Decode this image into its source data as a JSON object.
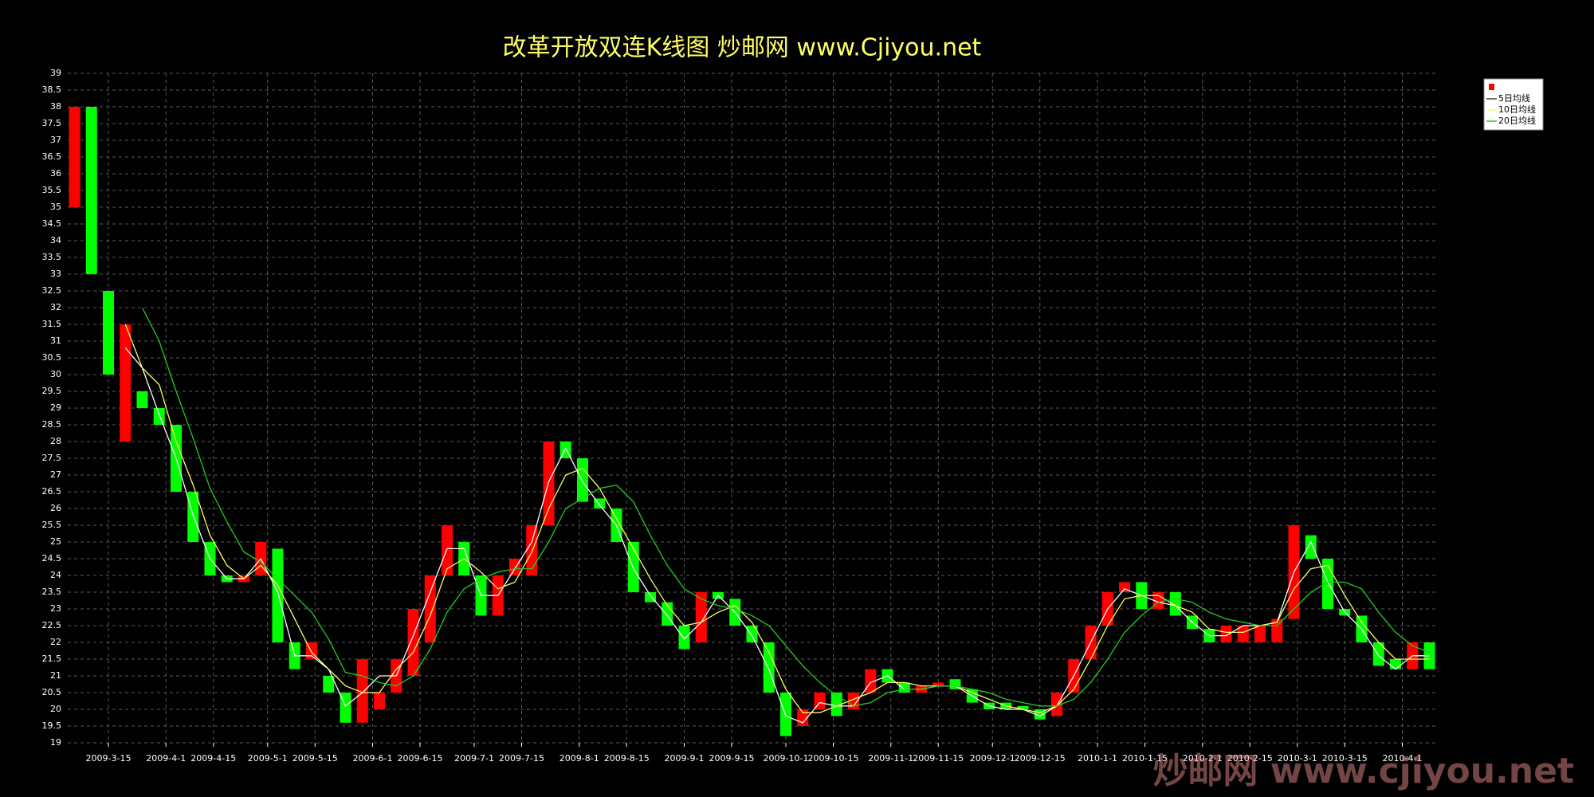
{
  "chart_data": {
    "type": "candlestick",
    "title": "改革开放双连K线图  炒邮网 www.Cjiyou.net",
    "watermark": "炒邮网 www.cjiyou.net",
    "x": [
      "2009-3-5",
      "2009-3-10",
      "2009-3-15",
      "2009-3-20",
      "2009-3-25",
      "2009-3-30",
      "2009-4-4",
      "2009-4-9",
      "2009-4-14",
      "2009-4-19",
      "2009-4-24",
      "2009-4-29",
      "2009-5-4",
      "2009-5-9",
      "2009-5-14",
      "2009-5-19",
      "2009-5-24",
      "2009-5-29",
      "2009-6-3",
      "2009-6-8",
      "2009-6-13",
      "2009-6-18",
      "2009-6-23",
      "2009-6-28",
      "2009-7-3",
      "2009-7-8",
      "2009-7-13",
      "2009-7-18",
      "2009-7-23",
      "2009-7-28",
      "2009-8-2",
      "2009-8-7",
      "2009-8-12",
      "2009-8-17",
      "2009-8-22",
      "2009-8-27",
      "2009-9-1",
      "2009-9-6",
      "2009-9-11",
      "2009-9-16",
      "2009-9-21",
      "2009-9-26",
      "2009-10-1",
      "2009-10-6",
      "2009-10-11",
      "2009-10-16",
      "2009-10-21",
      "2009-10-26",
      "2009-10-31",
      "2009-11-5",
      "2009-11-10",
      "2009-11-15",
      "2009-11-20",
      "2009-11-25",
      "2009-11-30",
      "2009-12-5",
      "2009-12-10",
      "2009-12-15",
      "2009-12-20",
      "2009-12-25",
      "2009-12-30",
      "2010-1-4",
      "2010-1-9",
      "2010-1-14",
      "2010-1-19",
      "2010-1-24",
      "2010-1-29",
      "2010-2-3",
      "2010-2-8",
      "2010-2-13",
      "2010-2-18",
      "2010-2-23",
      "2010-2-28",
      "2010-3-5",
      "2010-3-10",
      "2010-3-15",
      "2010-3-20",
      "2010-3-25",
      "2010-3-30",
      "2010-4-4",
      "2010-4-9"
    ],
    "open": [
      35,
      38,
      32.5,
      28,
      29.5,
      29,
      28.5,
      26.5,
      25,
      24,
      23.8,
      24,
      24.8,
      22,
      21.5,
      21,
      20.5,
      19.6,
      20,
      20.5,
      21,
      22,
      24,
      25,
      24,
      22.8,
      24,
      24,
      25.5,
      28,
      27.5,
      26.3,
      26,
      25,
      23.5,
      23.2,
      22.5,
      22,
      23.5,
      23.3,
      22.5,
      22,
      20.5,
      19.5,
      20,
      20.5,
      20,
      20.5,
      21.2,
      20.8,
      20.5,
      20.7,
      20.9,
      20.6,
      20.2,
      20.2,
      20.1,
      20.0,
      19.8,
      20.5,
      21.5,
      22.5,
      23.5,
      23.8,
      23,
      23.5,
      22.8,
      22.4,
      22,
      22,
      22,
      22,
      22.7,
      25.2,
      24.5,
      23,
      22.8,
      22,
      21.5,
      21.2,
      22
    ],
    "close": [
      38,
      33,
      30,
      31.5,
      29,
      28.5,
      26.5,
      25,
      24,
      23.8,
      24,
      25,
      22,
      21.2,
      22,
      20.5,
      19.6,
      21.5,
      20.5,
      21.5,
      23,
      24,
      25.5,
      24,
      22.8,
      24,
      24.5,
      25.5,
      28,
      27.5,
      26.2,
      26,
      25,
      23.5,
      23.2,
      22.5,
      21.8,
      23.5,
      23.3,
      22.5,
      22,
      20.5,
      19.2,
      20,
      20.5,
      19.8,
      20.5,
      21.2,
      20.8,
      20.5,
      20.7,
      20.8,
      20.6,
      20.2,
      20.0,
      20.0,
      20.0,
      19.7,
      20.5,
      21.5,
      22.5,
      23.5,
      23.8,
      23,
      23.5,
      22.8,
      22.4,
      22,
      22.5,
      22.5,
      22.5,
      22.7,
      25.5,
      24.5,
      23,
      22.8,
      22,
      21.3,
      21.2,
      22,
      21.2
    ],
    "up_color": "#ff0000",
    "down_color": "#00ff00",
    "lines": [
      {
        "name": "5日均线",
        "color": "#ffffff",
        "values": [
          null,
          null,
          null,
          30.8,
          30.2,
          28.8,
          27.5,
          25.8,
          24.5,
          23.9,
          23.9,
          24.5,
          23.5,
          21.6,
          21.6,
          21.2,
          20.1,
          20.5,
          21.0,
          21.0,
          22.2,
          23.5,
          24.8,
          24.8,
          23.4,
          23.4,
          24.2,
          25.0,
          26.8,
          27.8,
          26.8,
          26.1,
          25.5,
          24.2,
          23.4,
          22.8,
          22.1,
          22.6,
          23.4,
          22.9,
          22.2,
          21.2,
          19.8,
          19.6,
          20.2,
          20.1,
          20.1,
          20.8,
          21.0,
          20.6,
          20.6,
          20.7,
          20.7,
          20.4,
          20.1,
          20.0,
          20.0,
          19.8,
          20.1,
          21.0,
          22.0,
          23.0,
          23.6,
          23.4,
          23.2,
          23.1,
          22.6,
          22.2,
          22.2,
          22.5,
          22.5,
          22.6,
          24.1,
          25.0,
          23.8,
          22.9,
          22.4,
          21.6,
          21.2,
          21.6,
          21.6
        ]
      },
      {
        "name": "10日均线",
        "color": "#ffff66",
        "values": [
          null,
          null,
          null,
          31.5,
          30.2,
          29.7,
          28.0,
          26.7,
          25.2,
          24.3,
          23.9,
          24.3,
          23.7,
          22.7,
          21.7,
          21.2,
          20.7,
          20.5,
          20.5,
          21.2,
          21.7,
          22.8,
          24.2,
          24.5,
          24.1,
          23.6,
          23.8,
          24.7,
          26.0,
          27.0,
          27.2,
          26.6,
          25.7,
          24.8,
          23.9,
          23.1,
          22.5,
          22.6,
          22.9,
          23.1,
          22.6,
          21.7,
          20.6,
          19.9,
          19.9,
          20.1,
          20.3,
          20.5,
          20.8,
          20.8,
          20.7,
          20.7,
          20.7,
          20.5,
          20.3,
          20.1,
          20.0,
          19.9,
          20.1,
          20.6,
          21.5,
          22.5,
          23.3,
          23.4,
          23.4,
          23.1,
          22.9,
          22.4,
          22.3,
          22.3,
          22.5,
          22.6,
          23.6,
          24.2,
          24.3,
          23.4,
          22.6,
          22.0,
          21.5,
          21.5,
          21.5
        ]
      },
      {
        "name": "20日均线",
        "color": "#22cc22",
        "values": [
          null,
          null,
          null,
          null,
          32.0,
          31.0,
          29.5,
          28.1,
          26.6,
          25.6,
          24.7,
          24.4,
          23.9,
          23.4,
          22.9,
          22.1,
          21.1,
          21.0,
          20.8,
          20.7,
          21.0,
          21.8,
          22.9,
          23.6,
          23.9,
          24.1,
          24.2,
          24.2,
          25.0,
          26.0,
          26.3,
          26.6,
          26.7,
          26.2,
          25.2,
          24.3,
          23.6,
          23.3,
          23.1,
          23.0,
          22.8,
          22.5,
          21.9,
          21.3,
          20.8,
          20.4,
          20.1,
          20.2,
          20.5,
          20.6,
          20.6,
          20.7,
          20.7,
          20.6,
          20.5,
          20.3,
          20.2,
          20.1,
          20.1,
          20.3,
          20.8,
          21.5,
          22.3,
          22.8,
          23.2,
          23.3,
          23.2,
          22.9,
          22.7,
          22.6,
          22.5,
          22.5,
          23.0,
          23.5,
          23.8,
          23.8,
          23.6,
          22.9,
          22.3,
          21.9,
          21.7
        ]
      }
    ],
    "xlim": [
      "2009-3-3",
      "2010-4-11"
    ],
    "xticks": [
      "2009-3-15",
      "2009-4-1",
      "2009-4-15",
      "2009-5-1",
      "2009-5-15",
      "2009-6-1",
      "2009-6-15",
      "2009-7-1",
      "2009-7-15",
      "2009-8-1",
      "2009-8-15",
      "2009-9-1",
      "2009-9-15",
      "2009-10-1",
      "2009-10-15",
      "2009-11-1",
      "2009-11-15",
      "2009-12-1",
      "2009-12-15",
      "2010-1-1",
      "2010-1-15",
      "2010-2-1",
      "2010-2-15",
      "2010-3-1",
      "2010-3-15",
      "2010-4-1"
    ],
    "ylim": [
      19,
      39
    ],
    "yticks": [
      19,
      19.5,
      20,
      20.5,
      21,
      21.5,
      22,
      22.5,
      23,
      23.5,
      24,
      24.5,
      25,
      25.5,
      26,
      26.5,
      27,
      27.5,
      28,
      28.5,
      29,
      29.5,
      30,
      30.5,
      31,
      31.5,
      32,
      32.5,
      33,
      33.5,
      34,
      34.5,
      35,
      35.5,
      36,
      36.5,
      37,
      37.5,
      38,
      38.5,
      39
    ],
    "grid": true,
    "legend": "top-right"
  }
}
